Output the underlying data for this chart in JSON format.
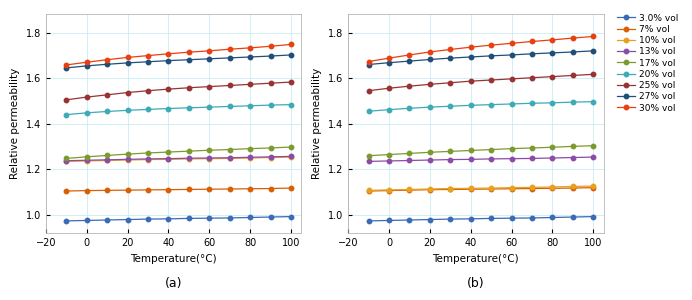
{
  "x": [
    -10,
    0,
    10,
    20,
    30,
    40,
    50,
    60,
    70,
    80,
    90,
    100
  ],
  "series_a": {
    "3.0% vol": [
      0.974,
      0.976,
      0.978,
      0.98,
      0.982,
      0.983,
      0.985,
      0.986,
      0.987,
      0.989,
      0.991,
      0.993
    ],
    "7% vol": [
      1.105,
      1.107,
      1.108,
      1.109,
      1.11,
      1.111,
      1.112,
      1.113,
      1.114,
      1.115,
      1.116,
      1.118
    ],
    "10% vol": [
      1.235,
      1.237,
      1.239,
      1.241,
      1.243,
      1.244,
      1.246,
      1.247,
      1.248,
      1.25,
      1.252,
      1.254
    ],
    "13% vol": [
      1.238,
      1.24,
      1.242,
      1.244,
      1.246,
      1.247,
      1.249,
      1.25,
      1.251,
      1.253,
      1.255,
      1.257
    ],
    "17% vol": [
      1.248,
      1.255,
      1.261,
      1.267,
      1.272,
      1.276,
      1.28,
      1.284,
      1.287,
      1.291,
      1.294,
      1.298
    ],
    "20% vol": [
      1.44,
      1.448,
      1.454,
      1.459,
      1.463,
      1.467,
      1.47,
      1.473,
      1.476,
      1.479,
      1.482,
      1.484
    ],
    "25% vol": [
      1.505,
      1.517,
      1.527,
      1.537,
      1.545,
      1.552,
      1.558,
      1.563,
      1.568,
      1.573,
      1.578,
      1.583
    ],
    "27% vol": [
      1.645,
      1.654,
      1.661,
      1.667,
      1.672,
      1.677,
      1.681,
      1.685,
      1.689,
      1.693,
      1.697,
      1.702
    ],
    "30% vol": [
      1.658,
      1.67,
      1.681,
      1.691,
      1.699,
      1.707,
      1.714,
      1.72,
      1.727,
      1.733,
      1.74,
      1.748
    ]
  },
  "series_b": {
    "3.0% vol": [
      0.974,
      0.976,
      0.978,
      0.98,
      0.982,
      0.983,
      0.985,
      0.986,
      0.987,
      0.989,
      0.991,
      0.993
    ],
    "7% vol": [
      1.105,
      1.107,
      1.109,
      1.111,
      1.112,
      1.113,
      1.114,
      1.115,
      1.116,
      1.117,
      1.118,
      1.12
    ],
    "10% vol": [
      1.108,
      1.11,
      1.112,
      1.114,
      1.116,
      1.117,
      1.118,
      1.12,
      1.121,
      1.123,
      1.125,
      1.127
    ],
    "13% vol": [
      1.235,
      1.237,
      1.239,
      1.241,
      1.243,
      1.244,
      1.246,
      1.247,
      1.248,
      1.25,
      1.252,
      1.254
    ],
    "17% vol": [
      1.26,
      1.265,
      1.27,
      1.275,
      1.279,
      1.283,
      1.287,
      1.291,
      1.294,
      1.297,
      1.301,
      1.304
    ],
    "20% vol": [
      1.455,
      1.462,
      1.468,
      1.473,
      1.477,
      1.481,
      1.484,
      1.487,
      1.49,
      1.492,
      1.495,
      1.497
    ],
    "25% vol": [
      1.545,
      1.556,
      1.565,
      1.573,
      1.58,
      1.587,
      1.592,
      1.597,
      1.602,
      1.607,
      1.612,
      1.617
    ],
    "27% vol": [
      1.66,
      1.668,
      1.675,
      1.682,
      1.688,
      1.693,
      1.698,
      1.702,
      1.707,
      1.711,
      1.715,
      1.72
    ],
    "30% vol": [
      1.673,
      1.688,
      1.702,
      1.715,
      1.726,
      1.736,
      1.745,
      1.753,
      1.761,
      1.768,
      1.776,
      1.783
    ]
  },
  "colors": {
    "3.0% vol": "#3A6BB5",
    "7% vol": "#D95F02",
    "10% vol": "#E8A020",
    "13% vol": "#8B4CA8",
    "17% vol": "#7C9A2D",
    "20% vol": "#3DAAB8",
    "25% vol": "#993333",
    "27% vol": "#1F4E79",
    "30% vol": "#E84010"
  },
  "xlabel": "Temperature(°C)",
  "ylabel": "Relative permeability",
  "xlim": [
    -20,
    105
  ],
  "xticks": [
    -20,
    0,
    20,
    40,
    60,
    80,
    100
  ],
  "ylim": [
    0.92,
    1.88
  ],
  "yticks": [
    1.0,
    1.2,
    1.4,
    1.6,
    1.8
  ],
  "label_a": "(a)",
  "label_b": "(b)",
  "legend_order": [
    "3.0% vol",
    "7% vol",
    "10% vol",
    "13% vol",
    "17% vol",
    "20% vol",
    "25% vol",
    "27% vol",
    "30% vol"
  ]
}
